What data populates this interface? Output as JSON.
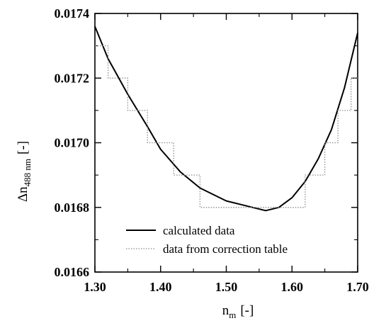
{
  "chart_data": {
    "type": "line",
    "title": "",
    "xlabel": {
      "main": "n",
      "sub": "m",
      "unit": "[-]"
    },
    "ylabel": {
      "main": "Δn",
      "sub": "488 nm",
      "unit": "[-]"
    },
    "xlim": [
      1.3,
      1.7
    ],
    "ylim": [
      0.0166,
      0.0174
    ],
    "x_ticks": [
      "1.30",
      "1.40",
      "1.50",
      "1.60",
      "1.70"
    ],
    "y_ticks": [
      "0.0166",
      "0.0168",
      "0.0170",
      "0.0172",
      "0.0174"
    ],
    "grid": false,
    "legend": "bottom-left",
    "series": [
      {
        "name": "calculated data",
        "style": "solid",
        "color": "#000000",
        "x": [
          1.3,
          1.32,
          1.35,
          1.38,
          1.4,
          1.43,
          1.46,
          1.48,
          1.5,
          1.52,
          1.54,
          1.56,
          1.58,
          1.6,
          1.62,
          1.64,
          1.66,
          1.68,
          1.7
        ],
        "y": [
          0.01736,
          0.01726,
          0.01715,
          0.01705,
          0.01698,
          0.01691,
          0.01686,
          0.01684,
          0.01682,
          0.01681,
          0.0168,
          0.01679,
          0.0168,
          0.01683,
          0.01688,
          0.01695,
          0.01704,
          0.01717,
          0.01734
        ]
      },
      {
        "name": "data from correction table",
        "style": "dotted-step",
        "color": "#8c8c8c",
        "x": [
          1.3,
          1.32,
          1.32,
          1.35,
          1.35,
          1.38,
          1.38,
          1.42,
          1.42,
          1.46,
          1.46,
          1.62,
          1.62,
          1.65,
          1.65,
          1.67,
          1.67,
          1.69,
          1.69,
          1.7
        ],
        "y": [
          0.0173,
          0.0173,
          0.0172,
          0.0172,
          0.0171,
          0.0171,
          0.017,
          0.017,
          0.0169,
          0.0169,
          0.0168,
          0.0168,
          0.0169,
          0.0169,
          0.017,
          0.017,
          0.0171,
          0.0171,
          0.0172,
          0.0172
        ]
      }
    ]
  }
}
